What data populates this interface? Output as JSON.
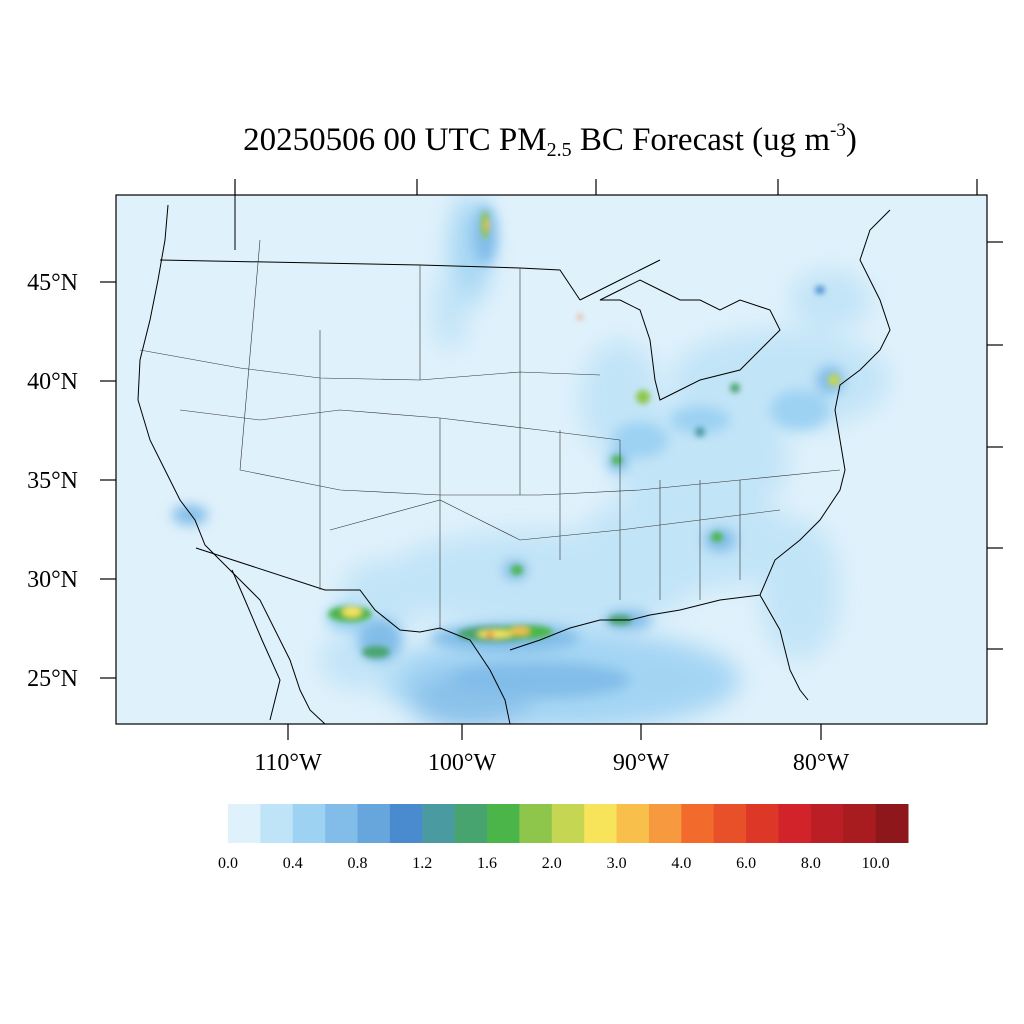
{
  "title": {
    "main": "20250506 00 UTC PM",
    "sub": "2.5",
    "mid": " BC Forecast (ug m",
    "sup": "-3",
    "end": ")"
  },
  "map": {
    "lat_labels": [
      "45°N",
      "40°N",
      "35°N",
      "30°N",
      "25°N"
    ],
    "lon_labels": [
      "110°W",
      "100°W",
      "90°W",
      "80°W"
    ],
    "background_color": "#dff1fb"
  },
  "colorbar": {
    "colors": [
      "#dff1fb",
      "#bfe3f7",
      "#9dd2f3",
      "#82bde9",
      "#66a6dc",
      "#4a8bd0",
      "#4a9aa2",
      "#48a46e",
      "#4cb54a",
      "#8ec64b",
      "#c4d652",
      "#f7e45b",
      "#f8bf4b",
      "#f79a3f",
      "#f26a2c",
      "#e8502a",
      "#dd3727",
      "#d2232a",
      "#bb1e25",
      "#a81c20",
      "#8e171b"
    ],
    "tick_labels": [
      "0.0",
      "0.4",
      "0.8",
      "1.2",
      "1.6",
      "2.0",
      "3.0",
      "4.0",
      "6.0",
      "8.0",
      "10.0"
    ]
  }
}
